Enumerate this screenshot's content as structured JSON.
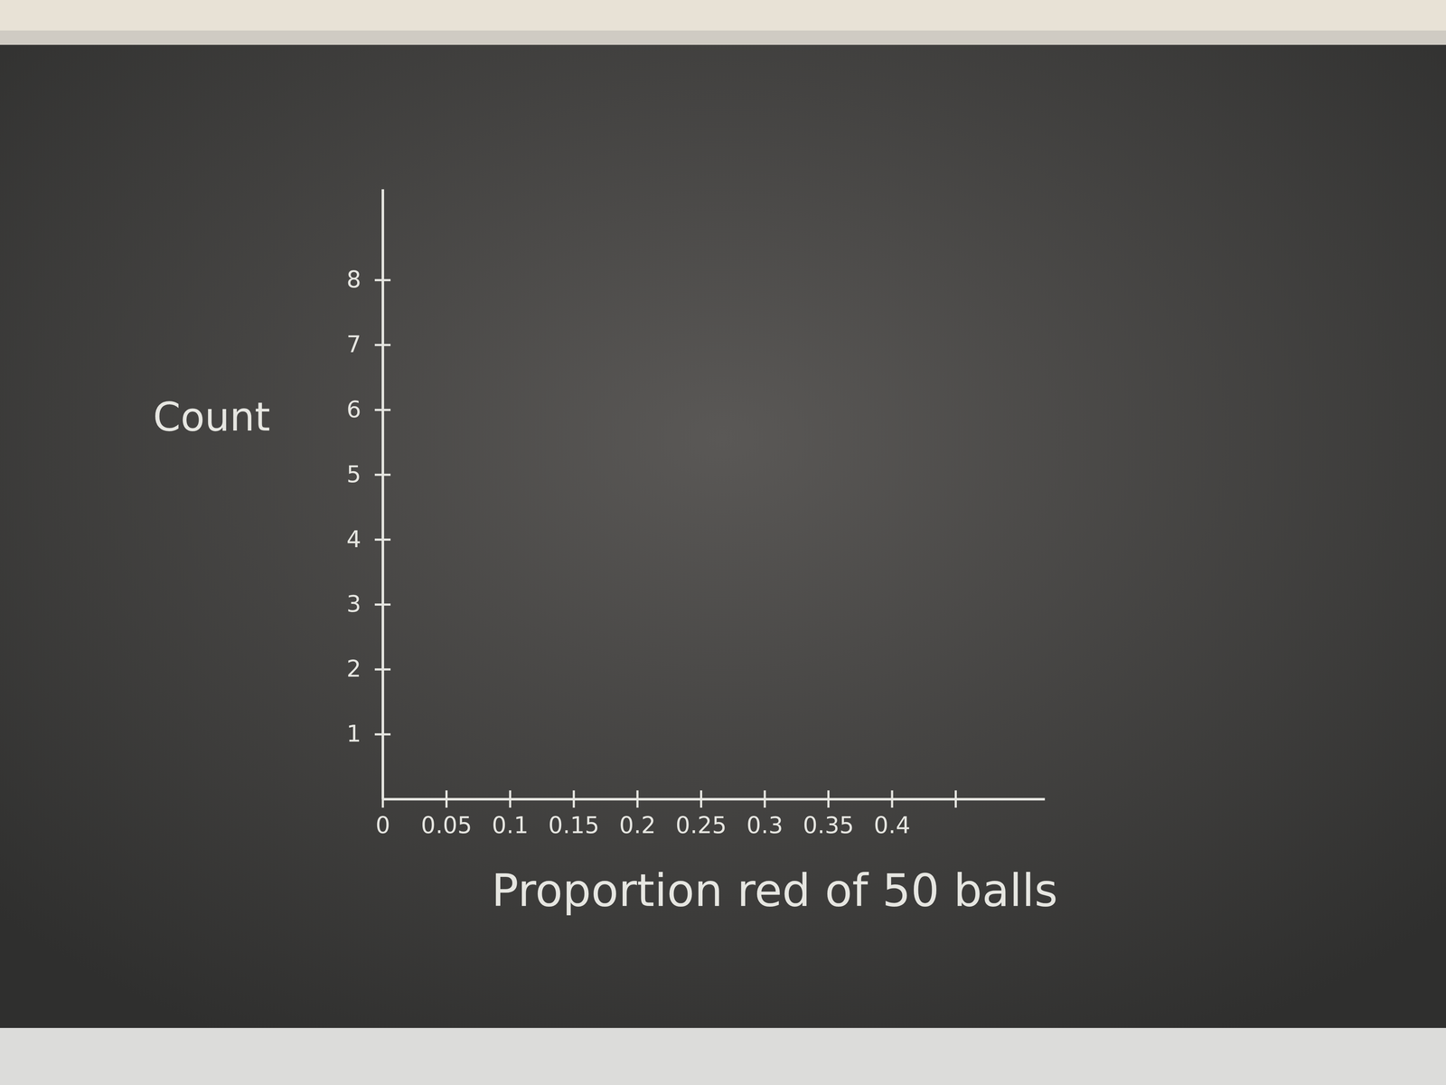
{
  "chart_data": {
    "type": "histogram",
    "x_label": "Proportion red of 50 balls",
    "y_label": "Count",
    "xlim": [
      0,
      0.52
    ],
    "xticks": [
      0,
      0.05,
      0.1,
      0.15,
      0.2,
      0.25,
      0.3,
      0.35,
      0.4,
      {
        "value": 0.45,
        "label": null
      }
    ],
    "ylim": [
      0,
      9.4
    ],
    "yticks": [
      1,
      2,
      3,
      4,
      5,
      6,
      7,
      8
    ],
    "grid": false
  }
}
